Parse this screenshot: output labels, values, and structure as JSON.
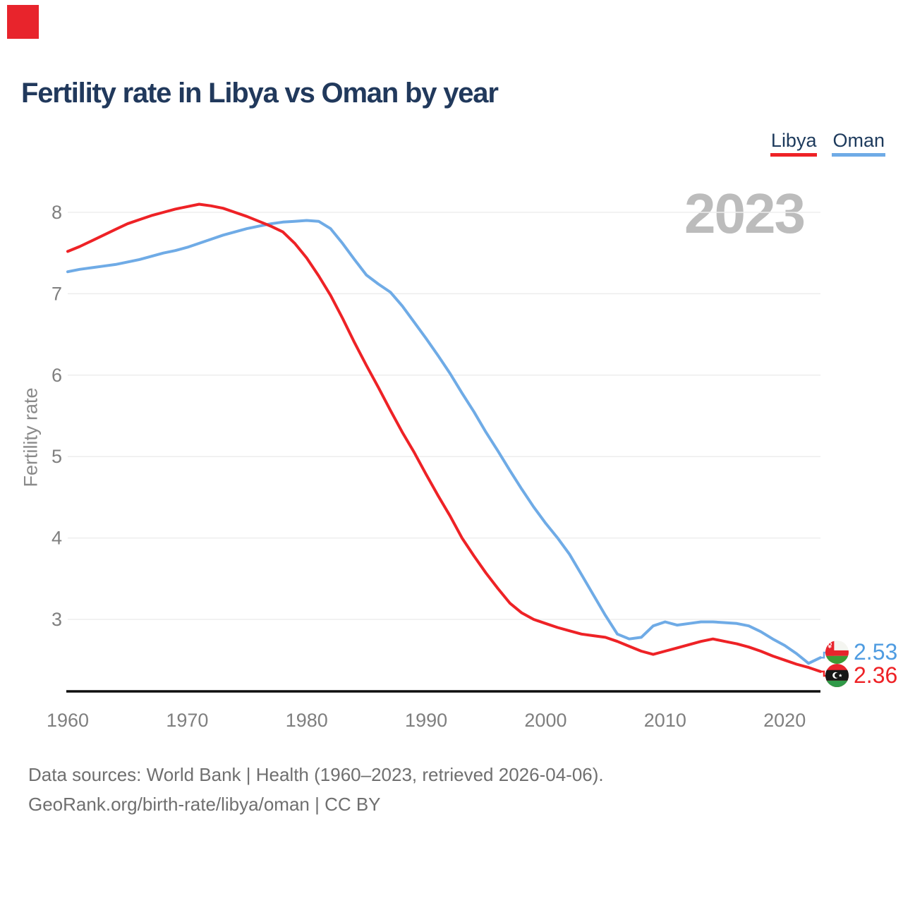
{
  "brand": {
    "logo_color": "#e8242c"
  },
  "header": {
    "title": "Fertility rate in Libya vs Oman by year"
  },
  "legend": {
    "items": [
      {
        "label": "Libya",
        "color": "#ee2226"
      },
      {
        "label": "Oman",
        "color": "#6fabe6"
      }
    ]
  },
  "watermark": "2023",
  "chart_data": {
    "type": "line",
    "title": "Fertility rate in Libya vs Oman by year",
    "xlabel": "",
    "ylabel": "Fertility rate",
    "x": [
      1960,
      1961,
      1962,
      1963,
      1964,
      1965,
      1966,
      1967,
      1968,
      1969,
      1970,
      1971,
      1972,
      1973,
      1974,
      1975,
      1976,
      1977,
      1978,
      1979,
      1980,
      1981,
      1982,
      1983,
      1984,
      1985,
      1986,
      1987,
      1988,
      1989,
      1990,
      1991,
      1992,
      1993,
      1994,
      1995,
      1996,
      1997,
      1998,
      1999,
      2000,
      2001,
      2002,
      2003,
      2004,
      2005,
      2006,
      2007,
      2008,
      2009,
      2010,
      2011,
      2012,
      2013,
      2014,
      2015,
      2016,
      2017,
      2018,
      2019,
      2020,
      2021,
      2022,
      2023
    ],
    "series": [
      {
        "name": "Libya",
        "color": "#ee2226",
        "values": [
          7.52,
          7.58,
          7.65,
          7.72,
          7.79,
          7.86,
          7.91,
          7.96,
          8.0,
          8.04,
          8.07,
          8.1,
          8.08,
          8.05,
          8.0,
          7.95,
          7.89,
          7.83,
          7.76,
          7.62,
          7.44,
          7.22,
          6.98,
          6.7,
          6.4,
          6.12,
          5.85,
          5.57,
          5.3,
          5.05,
          4.78,
          4.52,
          4.27,
          4.0,
          3.78,
          3.57,
          3.38,
          3.2,
          3.08,
          3.0,
          2.95,
          2.9,
          2.86,
          2.82,
          2.8,
          2.78,
          2.73,
          2.67,
          2.61,
          2.57,
          2.61,
          2.65,
          2.69,
          2.73,
          2.76,
          2.73,
          2.7,
          2.66,
          2.61,
          2.55,
          2.5,
          2.45,
          2.41,
          2.36
        ]
      },
      {
        "name": "Oman",
        "color": "#6fabe6",
        "values": [
          7.27,
          7.3,
          7.32,
          7.34,
          7.36,
          7.39,
          7.42,
          7.46,
          7.5,
          7.53,
          7.57,
          7.62,
          7.67,
          7.72,
          7.76,
          7.8,
          7.83,
          7.86,
          7.88,
          7.89,
          7.9,
          7.89,
          7.8,
          7.62,
          7.42,
          7.23,
          7.12,
          7.02,
          6.85,
          6.65,
          6.45,
          6.24,
          6.02,
          5.78,
          5.55,
          5.3,
          5.07,
          4.83,
          4.6,
          4.38,
          4.18,
          4.0,
          3.8,
          3.55,
          3.3,
          3.05,
          2.82,
          2.76,
          2.78,
          2.92,
          2.97,
          2.93,
          2.95,
          2.97,
          2.97,
          2.96,
          2.95,
          2.92,
          2.85,
          2.76,
          2.68,
          2.58,
          2.46,
          2.53
        ]
      }
    ],
    "yticks": [
      3,
      4,
      5,
      6,
      7,
      8
    ],
    "xticks": [
      1960,
      1970,
      1980,
      1990,
      2000,
      2010,
      2020
    ],
    "ylim": [
      2.1,
      8.4
    ],
    "grid": "horizontal",
    "legend_position": "top-right"
  },
  "end_labels": [
    {
      "country": "Oman",
      "value": "2.53",
      "color": "#4f9ce1"
    },
    {
      "country": "Libya",
      "value": "2.36",
      "color": "#ee2226"
    }
  ],
  "footer": {
    "line1": "Data sources: World Bank | Health (1960–2023, retrieved 2026-04-06).",
    "line2": "GeoRank.org/birth-rate/libya/oman | CC BY"
  }
}
